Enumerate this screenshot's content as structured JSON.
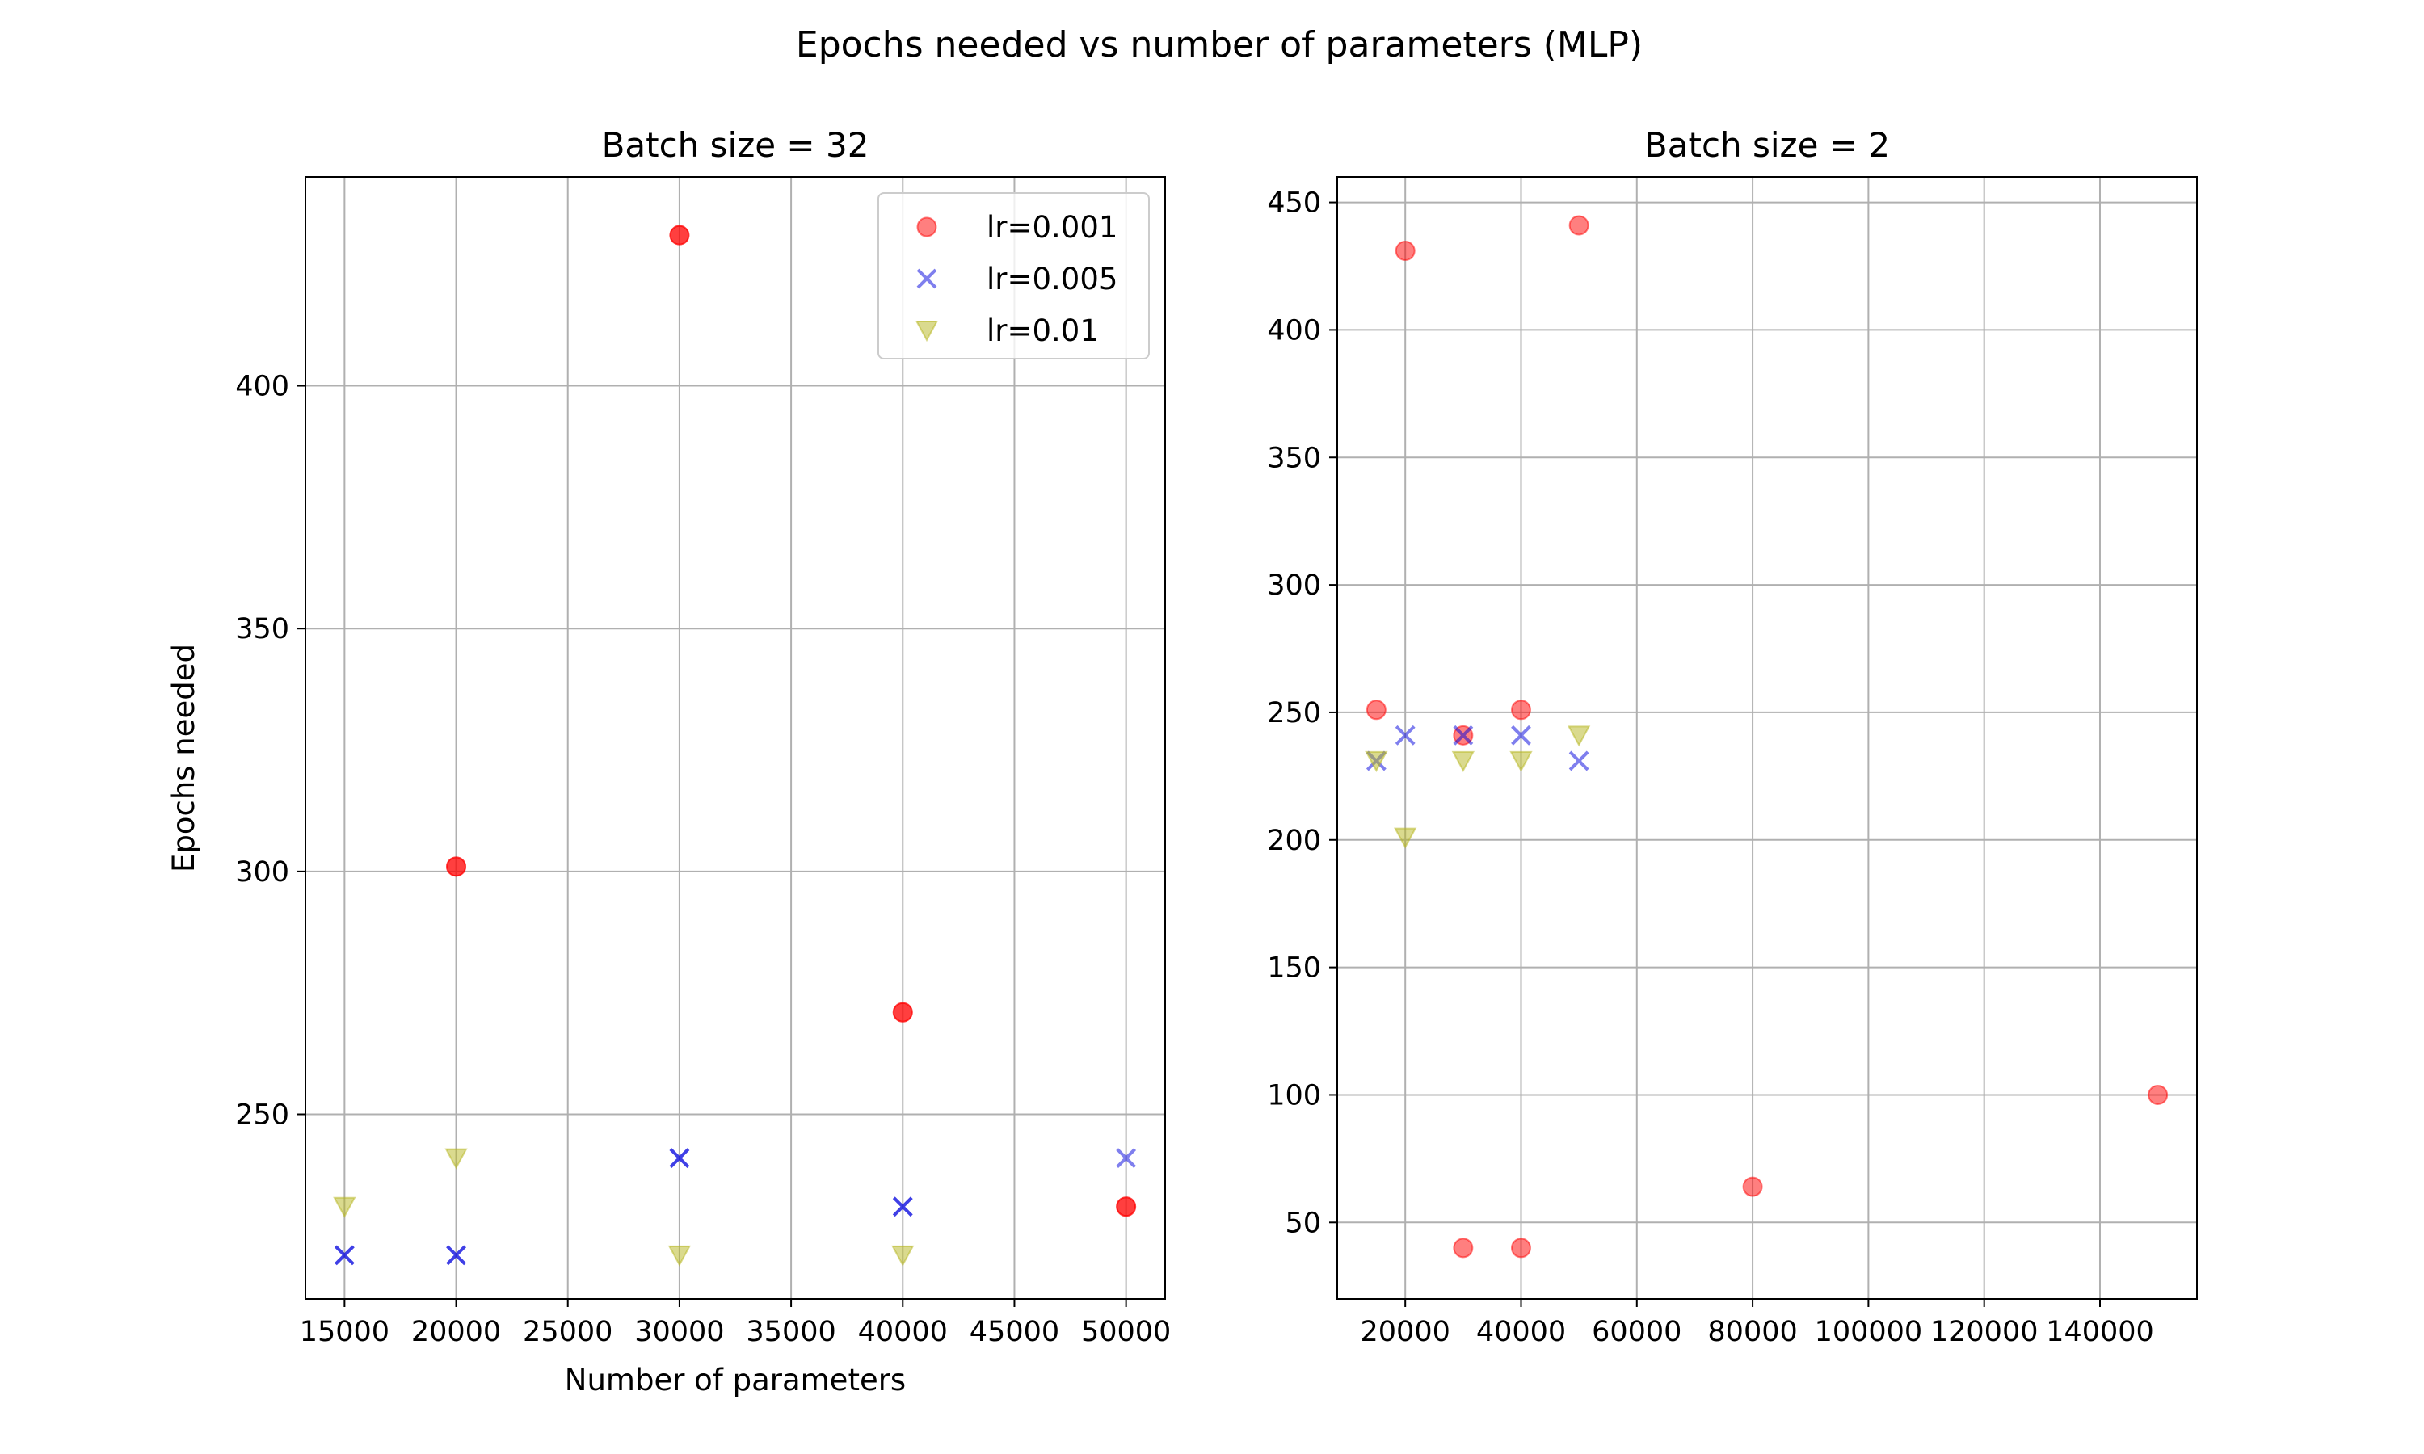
{
  "figure_title": "Epochs needed vs number of parameters (MLP)",
  "colors": {
    "red": "#ff0000",
    "blue": "#0000dd",
    "yellow": "#b5b51e",
    "grid": "#b0b0b0",
    "axis": "#000000"
  },
  "chart_data": [
    {
      "type": "scatter",
      "title": "Batch size = 32",
      "xlabel": "Number of parameters",
      "ylabel": "Epochs needed",
      "xlim": [
        13250,
        51750
      ],
      "ylim": [
        212,
        443
      ],
      "xticks": [
        15000,
        20000,
        25000,
        30000,
        35000,
        40000,
        45000,
        50000
      ],
      "yticks": [
        250,
        300,
        350,
        400
      ],
      "grid": true,
      "legend": "upper right",
      "series": [
        {
          "name": "lr=0.001",
          "marker": "circle",
          "color": "#ff0000",
          "points": [
            [
              20000,
              301
            ],
            [
              30000,
              431
            ],
            [
              40000,
              271
            ],
            [
              50000,
              231
            ],
            [
              20000,
              301
            ],
            [
              30000,
              431
            ],
            [
              40000,
              271
            ],
            [
              50000,
              231
            ]
          ]
        },
        {
          "name": "lr=0.005",
          "marker": "x",
          "color": "#0000dd",
          "points": [
            [
              15000,
              221
            ],
            [
              20000,
              221
            ],
            [
              30000,
              241
            ],
            [
              40000,
              231
            ],
            [
              50000,
              241
            ],
            [
              15000,
              221
            ],
            [
              20000,
              221
            ],
            [
              30000,
              241
            ],
            [
              40000,
              231
            ]
          ]
        },
        {
          "name": "lr=0.01",
          "marker": "triangle",
          "color": "#b5b51e",
          "points": [
            [
              15000,
              231
            ],
            [
              20000,
              241
            ],
            [
              30000,
              221
            ],
            [
              40000,
              221
            ]
          ]
        }
      ]
    },
    {
      "type": "scatter",
      "title": "Batch size = 2",
      "xlabel": "",
      "ylabel": "",
      "xlim": [
        8250,
        156750
      ],
      "ylim": [
        20,
        460
      ],
      "xticks": [
        20000,
        40000,
        60000,
        80000,
        100000,
        120000,
        140000
      ],
      "yticks": [
        50,
        100,
        150,
        200,
        250,
        300,
        350,
        400,
        450
      ],
      "grid": true,
      "series": [
        {
          "name": "lr=0.001",
          "marker": "circle",
          "color": "#ff0000",
          "points": [
            [
              15000,
              251
            ],
            [
              20000,
              431
            ],
            [
              30000,
              241
            ],
            [
              40000,
              251
            ],
            [
              50000,
              441
            ],
            [
              30000,
              40
            ],
            [
              40000,
              40
            ],
            [
              80000,
              64
            ],
            [
              150000,
              100
            ]
          ]
        },
        {
          "name": "lr=0.005",
          "marker": "x",
          "color": "#0000dd",
          "points": [
            [
              15000,
              231
            ],
            [
              20000,
              241
            ],
            [
              30000,
              241
            ],
            [
              40000,
              241
            ],
            [
              50000,
              231
            ]
          ]
        },
        {
          "name": "lr=0.01",
          "marker": "triangle",
          "color": "#b5b51e",
          "points": [
            [
              15000,
              231
            ],
            [
              20000,
              201
            ],
            [
              30000,
              231
            ],
            [
              40000,
              231
            ],
            [
              50000,
              241
            ]
          ]
        }
      ]
    }
  ]
}
